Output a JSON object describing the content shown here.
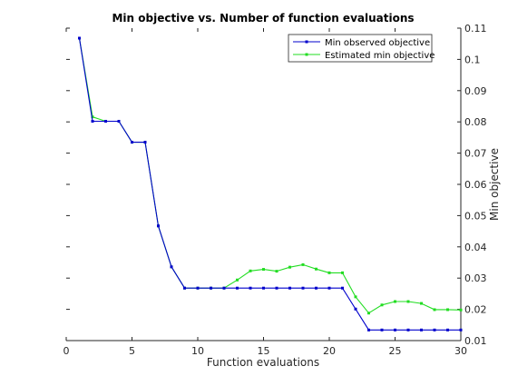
{
  "chart_data": {
    "type": "line",
    "title": "Min objective vs. Number of function evaluations",
    "xlabel": "Function evaluations",
    "ylabel": "Min objective",
    "xlim": [
      0,
      30
    ],
    "ylim": [
      0.01,
      0.11
    ],
    "xticks": [
      0,
      5,
      10,
      15,
      20,
      25,
      30
    ],
    "yticks": [
      0.01,
      0.02,
      0.03,
      0.04,
      0.05,
      0.06,
      0.07,
      0.08,
      0.09,
      0.1,
      0.11
    ],
    "grid": false,
    "y_axis_position": "right",
    "legend_position": "top-right",
    "x": [
      1,
      2,
      3,
      4,
      5,
      6,
      7,
      8,
      9,
      10,
      11,
      12,
      13,
      14,
      15,
      16,
      17,
      18,
      19,
      20,
      21,
      22,
      23,
      24,
      25,
      26,
      27,
      28,
      29,
      30
    ],
    "series": [
      {
        "name": "Min observed objective",
        "color": "#0000cc",
        "values": [
          0.1068,
          0.0802,
          0.0802,
          0.0802,
          0.0735,
          0.0735,
          0.0467,
          0.0336,
          0.0268,
          0.0268,
          0.0268,
          0.0268,
          0.0268,
          0.0268,
          0.0268,
          0.0268,
          0.0268,
          0.0268,
          0.0268,
          0.0268,
          0.0268,
          0.0201,
          0.0134,
          0.0134,
          0.0134,
          0.0134,
          0.0134,
          0.0134,
          0.0134,
          0.0134
        ]
      },
      {
        "name": "Estimated min objective",
        "color": "#22dd22",
        "values": [
          0.1068,
          0.0816,
          0.0802,
          0.0802,
          0.0735,
          0.0735,
          0.0467,
          0.0336,
          0.0268,
          0.0268,
          0.0268,
          0.0268,
          0.0294,
          0.0323,
          0.0328,
          0.0322,
          0.0335,
          0.0343,
          0.0329,
          0.0317,
          0.0317,
          0.024,
          0.0188,
          0.0214,
          0.0225,
          0.0225,
          0.0219,
          0.0199,
          0.0199,
          0.0198
        ]
      }
    ]
  }
}
